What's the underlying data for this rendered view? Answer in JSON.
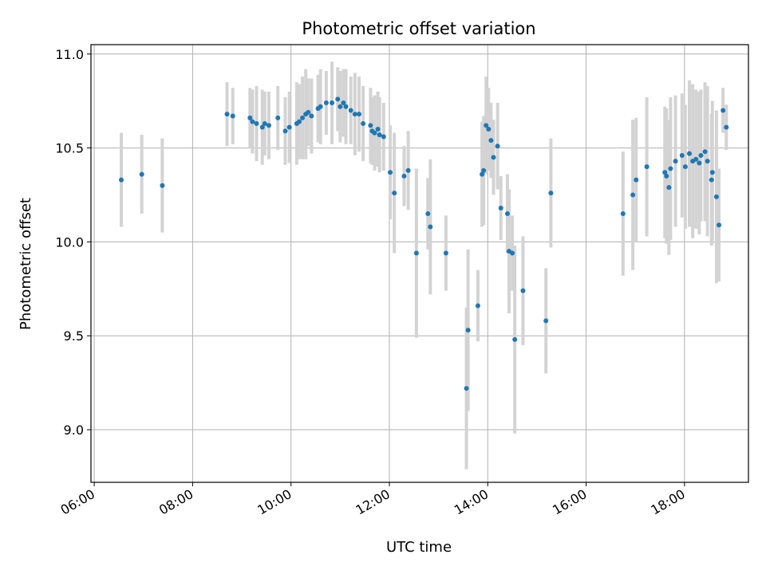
{
  "chart_data": {
    "type": "scatter",
    "title": "Photometric offset variation",
    "xlabel": "UTC time",
    "ylabel": "Photometric offset",
    "xlim": [
      "05:56",
      "19:18"
    ],
    "ylim": [
      8.72,
      11.05
    ],
    "x_ticks": [
      "06:00",
      "08:00",
      "10:00",
      "12:00",
      "14:00",
      "16:00",
      "18:00"
    ],
    "y_ticks": [
      "9.0",
      "9.5",
      "10.0",
      "10.5",
      "11.0"
    ],
    "grid": true,
    "colors": {
      "point": "#1f77b4",
      "errorbar": "#d3d3d3",
      "grid": "#b0b0b0"
    },
    "series": [
      {
        "x": [
          "06:33",
          "06:58",
          "07:23",
          "08:42",
          "08:49",
          "09:13",
          "09:10",
          "09:18",
          "09:25",
          "09:28",
          "09:33",
          "09:44",
          "09:53",
          "09:58",
          "10:07",
          "10:10",
          "10:14",
          "10:18",
          "10:21",
          "10:25",
          "10:33",
          "10:36",
          "10:43",
          "10:50",
          "10:57",
          "11:00",
          "11:04",
          "11:07",
          "11:13",
          "11:18",
          "11:23",
          "11:28",
          "11:37",
          "11:39",
          "11:42",
          "11:46",
          "11:48",
          "11:53",
          "12:01",
          "12:06",
          "12:18",
          "12:23",
          "12:33",
          "12:47",
          "12:50",
          "13:09",
          "13:34",
          "13:36",
          "13:48",
          "13:53",
          "13:55",
          "13:58",
          "14:01",
          "14:04",
          "14:07",
          "14:12",
          "14:16",
          "14:24",
          "14:26",
          "14:30",
          "14:33",
          "14:43",
          "15:11",
          "15:17",
          "16:45",
          "16:57",
          "17:01",
          "17:14",
          "17:36",
          "17:38",
          "17:41",
          "17:43",
          "17:49",
          "17:57",
          "18:01",
          "18:06",
          "18:10",
          "18:14",
          "18:18",
          "18:20",
          "18:25",
          "18:28",
          "18:33",
          "18:34",
          "18:39",
          "18:42",
          "18:47",
          "18:51"
        ],
        "y": [
          10.33,
          10.36,
          10.3,
          10.68,
          10.67,
          10.64,
          10.66,
          10.63,
          10.61,
          10.63,
          10.62,
          10.66,
          10.59,
          10.61,
          10.63,
          10.64,
          10.66,
          10.68,
          10.69,
          10.67,
          10.71,
          10.72,
          10.74,
          10.74,
          10.76,
          10.72,
          10.74,
          10.72,
          10.7,
          10.68,
          10.68,
          10.63,
          10.62,
          10.59,
          10.58,
          10.6,
          10.57,
          10.56,
          10.37,
          10.26,
          10.35,
          10.38,
          9.94,
          10.15,
          10.08,
          9.94,
          9.22,
          9.53,
          9.66,
          10.36,
          10.38,
          10.62,
          10.6,
          10.54,
          10.45,
          10.51,
          10.18,
          10.15,
          9.95,
          9.94,
          9.48,
          9.74,
          9.58,
          10.26,
          10.15,
          10.25,
          10.33,
          10.4,
          10.37,
          10.35,
          10.29,
          10.39,
          10.43,
          10.46,
          10.4,
          10.47,
          10.43,
          10.44,
          10.42,
          10.46,
          10.48,
          10.43,
          10.33,
          10.37,
          10.24,
          10.09,
          10.7,
          10.61
        ],
        "err": [
          0.25,
          0.21,
          0.25,
          0.17,
          0.15,
          0.17,
          0.16,
          0.2,
          0.2,
          0.17,
          0.18,
          0.17,
          0.18,
          0.19,
          0.22,
          0.2,
          0.22,
          0.24,
          0.18,
          0.2,
          0.18,
          0.2,
          0.17,
          0.22,
          0.17,
          0.19,
          0.18,
          0.2,
          0.18,
          0.22,
          0.2,
          0.2,
          0.2,
          0.18,
          0.2,
          0.2,
          0.2,
          0.18,
          0.25,
          0.32,
          0.16,
          0.21,
          0.45,
          0.19,
          0.36,
          0.2,
          0.43,
          0.43,
          0.19,
          0.28,
          0.29,
          0.26,
          0.22,
          0.2,
          0.2,
          0.23,
          0.17,
          0.21,
          0.33,
          0.2,
          0.5,
          0.29,
          0.28,
          0.29,
          0.33,
          0.4,
          0.33,
          0.37,
          0.35,
          0.36,
          0.36,
          0.38,
          0.35,
          0.33,
          0.33,
          0.39,
          0.41,
          0.37,
          0.38,
          0.35,
          0.37,
          0.4,
          0.35,
          0.38,
          0.46,
          0.3,
          0.12,
          0.12
        ]
      }
    ]
  }
}
